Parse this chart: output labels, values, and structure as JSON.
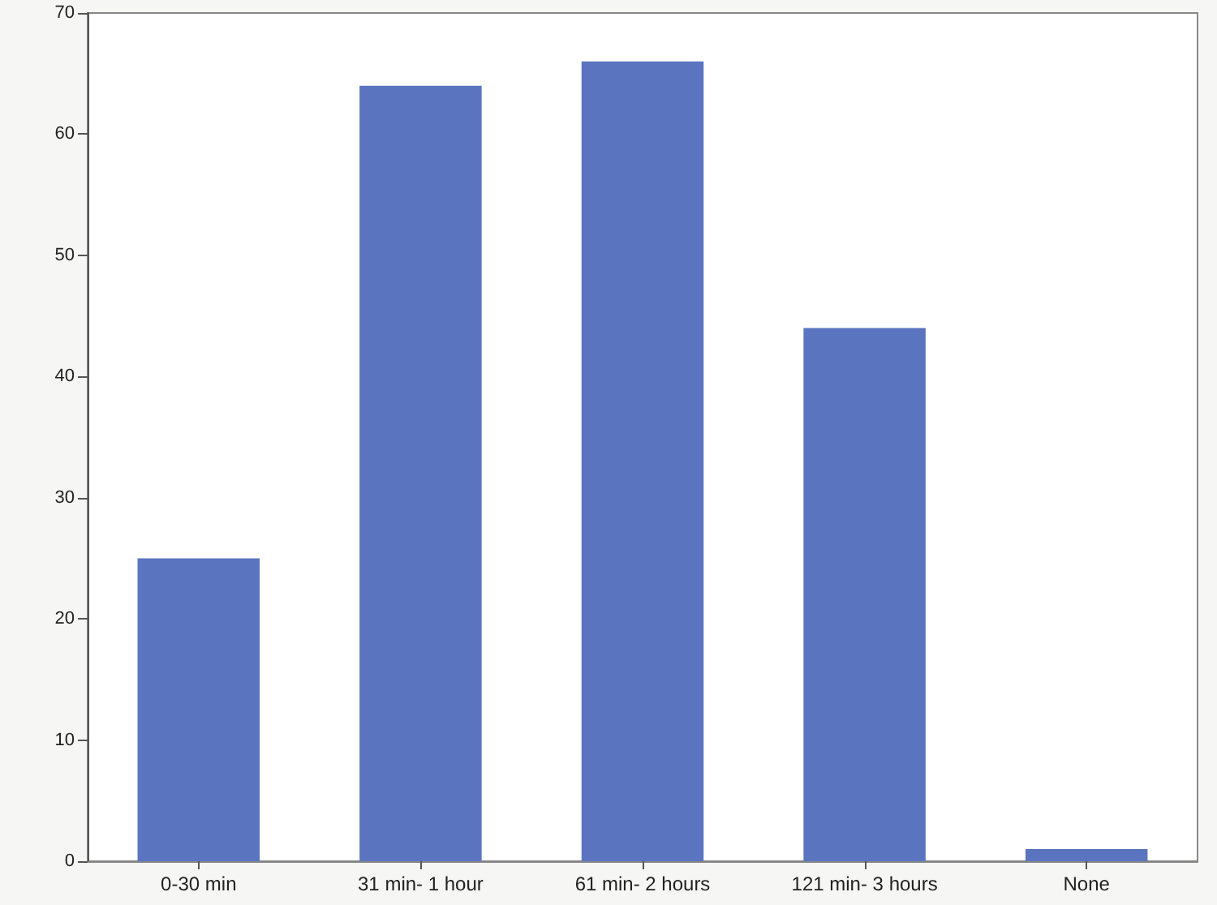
{
  "chart_data": {
    "type": "bar",
    "categories": [
      "0-30 min",
      "31 min- 1 hour",
      "61 min- 2 hours",
      "121 min- 3 hours",
      "None"
    ],
    "values": [
      25,
      64,
      66,
      44,
      1
    ],
    "color": "#5b74c0",
    "ylim": [
      0,
      70
    ],
    "yticks": [
      0,
      10,
      20,
      30,
      40,
      50,
      60,
      70
    ],
    "grid": false
  }
}
